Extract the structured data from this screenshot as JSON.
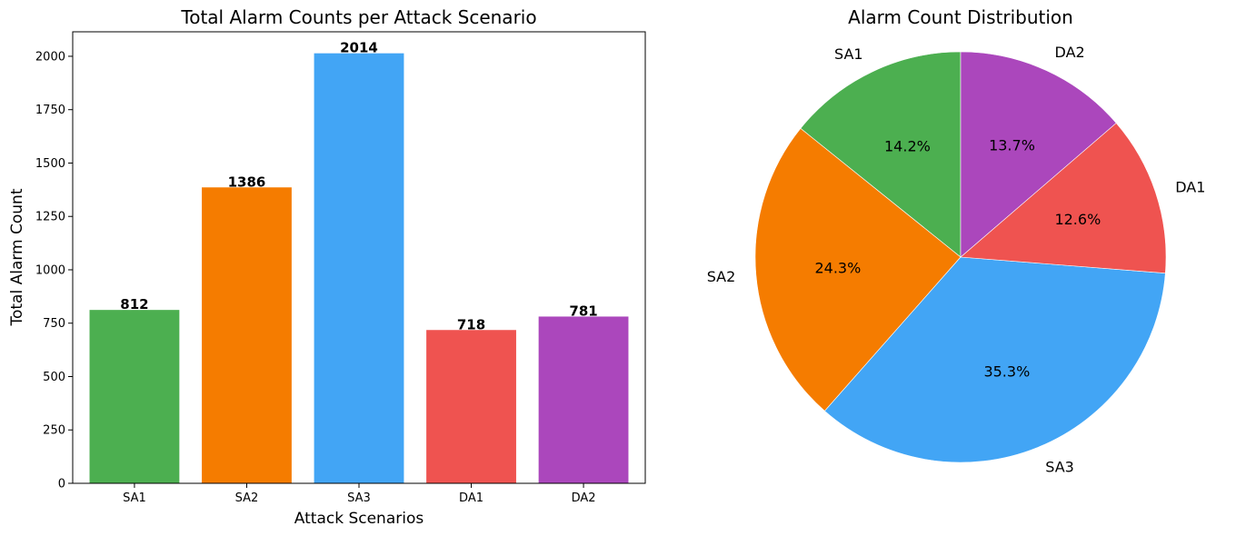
{
  "chart_data": [
    {
      "type": "bar",
      "title": "Total Alarm Counts per Attack Scenario",
      "xlabel": "Attack Scenarios",
      "ylabel": "Total Alarm Count",
      "categories": [
        "SA1",
        "SA2",
        "SA3",
        "DA1",
        "DA2"
      ],
      "values": [
        812,
        1386,
        2014,
        718,
        781
      ],
      "data_labels": [
        "812",
        "1386",
        "2014",
        "718",
        "781"
      ],
      "colors": [
        "#4caf50",
        "#f57c00",
        "#42a5f5",
        "#ef5350",
        "#ab47bc"
      ],
      "yticks": [
        0,
        250,
        500,
        750,
        1000,
        1250,
        1500,
        1750,
        2000
      ],
      "ylim": [
        0,
        2114.7
      ],
      "grid": false,
      "legend": false
    },
    {
      "type": "pie",
      "title": "Alarm Count Distribution",
      "labels": [
        "SA1",
        "SA2",
        "SA3",
        "DA1",
        "DA2"
      ],
      "values": [
        812,
        1386,
        2014,
        718,
        781
      ],
      "percent_labels": [
        "14.2%",
        "24.3%",
        "35.3%",
        "12.6%",
        "13.7%"
      ],
      "colors": [
        "#4caf50",
        "#f57c00",
        "#42a5f5",
        "#ef5350",
        "#ab47bc"
      ],
      "start_angle_deg": 90,
      "direction": "counterclockwise",
      "legend": false
    }
  ]
}
